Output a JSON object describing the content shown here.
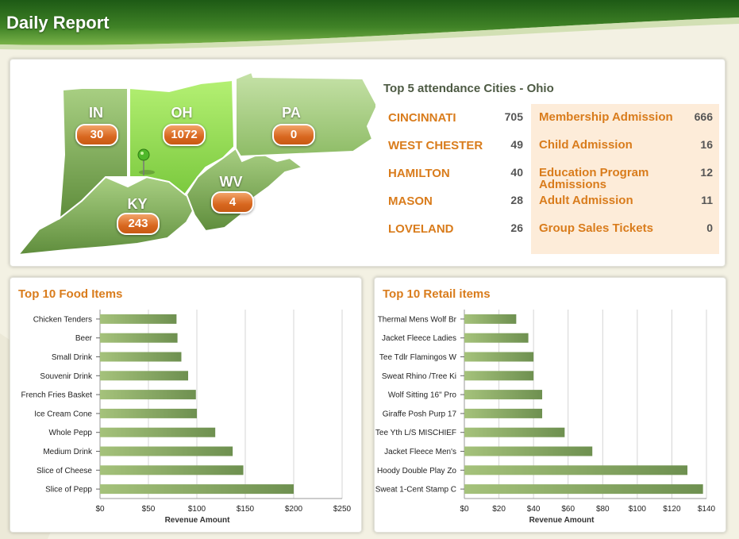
{
  "header": {
    "title": "Daily Report"
  },
  "colors": {
    "header_green": "#2f6e1f",
    "state_green": "#7eae52",
    "ohio_green": "#9be35a",
    "badge_orange": "#d8671f",
    "label_orange": "#d97c1c",
    "admission_bg": "#fdecd9",
    "bar_start": "#a5c27b",
    "bar_end": "#6e9050"
  },
  "map": {
    "states": [
      {
        "code": "IN",
        "value": "30"
      },
      {
        "code": "OH",
        "value": "1072"
      },
      {
        "code": "PA",
        "value": "0"
      },
      {
        "code": "WV",
        "value": "4"
      },
      {
        "code": "KY",
        "value": "243"
      }
    ],
    "pin_icon": "map-pin-icon"
  },
  "attendance": {
    "title": "Top 5 attendance Cities - Ohio",
    "cities": [
      {
        "name": "CINCINNATI",
        "value": "705"
      },
      {
        "name": "WEST CHESTER",
        "value": "49"
      },
      {
        "name": "HAMILTON",
        "value": "40"
      },
      {
        "name": "MASON",
        "value": "28"
      },
      {
        "name": "LOVELAND",
        "value": "26"
      }
    ],
    "admissions": [
      {
        "name": "Membership Admission",
        "value": "666"
      },
      {
        "name": "Child Admission",
        "value": "16"
      },
      {
        "name": "Education Program Admissions",
        "value": "12"
      },
      {
        "name": "Adult Admission",
        "value": "11"
      },
      {
        "name": "Group Sales Tickets",
        "value": "0"
      }
    ]
  },
  "food": {
    "title": "Top 10 Food Items",
    "chart_data": {
      "type": "bar",
      "orientation": "horizontal",
      "categories": [
        "Chicken Tenders",
        "Beer",
        "Small Drink",
        "Souvenir Drink",
        "French Fries Basket",
        "Ice Cream Cone",
        "Whole Pepp",
        "Medium Drink",
        "Slice of Cheese",
        "Slice of Pepp"
      ],
      "values": [
        79,
        80,
        84,
        91,
        99,
        100,
        119,
        137,
        148,
        200
      ],
      "xlabel": "Revenue Amount",
      "xlim": [
        0,
        250
      ],
      "xticks": [
        "$0",
        "$50",
        "$100",
        "$150",
        "$200",
        "$250"
      ],
      "xtick_values": [
        0,
        50,
        100,
        150,
        200,
        250
      ],
      "grid": true
    }
  },
  "retail": {
    "title": "Top 10 Retail items",
    "chart_data": {
      "type": "bar",
      "orientation": "horizontal",
      "categories": [
        "Thermal Mens Wolf Br",
        "Jacket Fleece Ladies",
        "Tee Tdlr Flamingos W",
        "Sweat Rhino /Tree Ki",
        "Wolf Sitting 16\" Pro",
        "Giraffe Posh Purp 17",
        "Tee Yth L/S MISCHIEF",
        "Jacket Fleece Men's",
        "Hoody Double Play Zo",
        "Sweat 1-Cent Stamp C"
      ],
      "values": [
        30,
        37,
        40,
        40,
        45,
        45,
        58,
        74,
        129,
        138
      ],
      "xlabel": "Revenue Amount",
      "xlim": [
        0,
        140
      ],
      "xticks": [
        "$0",
        "$20",
        "$40",
        "$60",
        "$80",
        "$100",
        "$120",
        "$140"
      ],
      "xtick_values": [
        0,
        20,
        40,
        60,
        80,
        100,
        120,
        140
      ],
      "grid": true
    }
  }
}
